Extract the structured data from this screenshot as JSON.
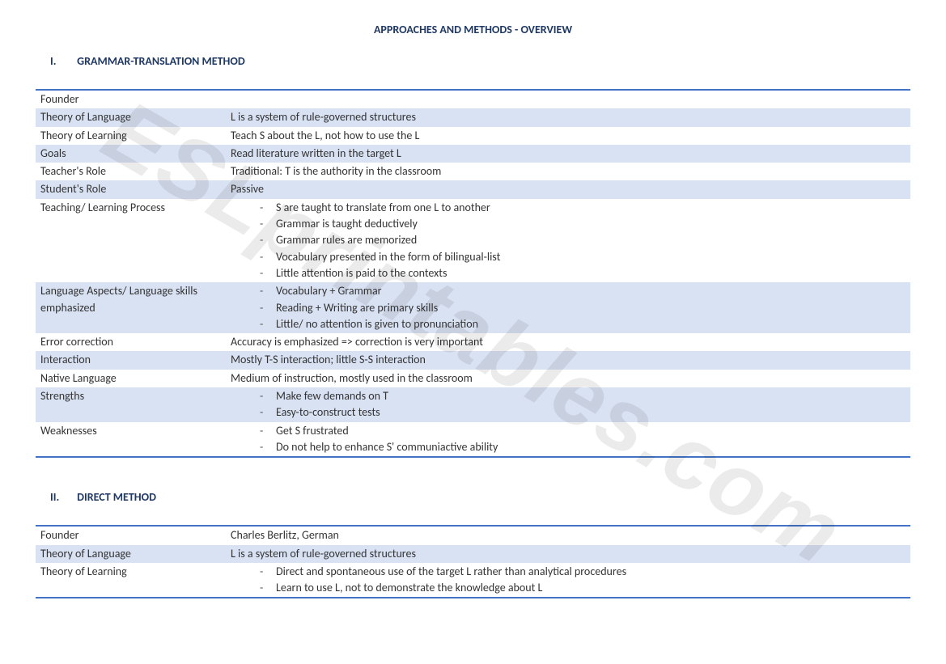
{
  "title": "APPROACHES AND METHODS - OVERVIEW",
  "watermark": "ESLprintables.com",
  "section1": {
    "roman": "I.",
    "heading": "GRAMMAR-TRANSLATION METHOD",
    "rows": [
      {
        "label": "Founder",
        "value": "",
        "stripe": false,
        "type": "text"
      },
      {
        "label": "Theory of Language",
        "value": "L  is a system of rule-governed structures",
        "stripe": true,
        "type": "text"
      },
      {
        "label": "Theory of Learning",
        "value": "Teach S about the L, not how to use the L",
        "stripe": false,
        "type": "text"
      },
      {
        "label": "Goals",
        "value": "Read literature written in the target L",
        "stripe": true,
        "type": "text"
      },
      {
        "label": "Teacher's Role",
        "value": "Traditional: T is the authority in the classroom",
        "stripe": false,
        "type": "text"
      },
      {
        "label": "Student's Role",
        "value": "Passive",
        "stripe": true,
        "type": "text"
      },
      {
        "label": "Teaching/ Learning Process",
        "value": [
          "S are taught to translate from one L to another",
          "Grammar is taught deductively",
          "Grammar rules are memorized",
          "Vocabulary presented in the form of bilingual-list",
          "Little attention is paid to the contexts"
        ],
        "stripe": false,
        "type": "list"
      },
      {
        "label": "Language Aspects/ Language skills emphasized",
        "value": [
          "Vocabulary + Grammar",
          "Reading + Writing are primary skills",
          "Little/ no attention is given to pronunciation"
        ],
        "stripe": true,
        "type": "list"
      },
      {
        "label": "Error correction",
        "value": "Accuracy is emphasized => correction is very important",
        "stripe": false,
        "type": "text"
      },
      {
        "label": "Interaction",
        "value": "Mostly T-S interaction; little S-S interaction",
        "stripe": true,
        "type": "text"
      },
      {
        "label": "Native Language",
        "value": "Medium of instruction, mostly used in the classroom",
        "stripe": false,
        "type": "text"
      },
      {
        "label": "Strengths",
        "value": [
          "Make few demands on T",
          "Easy-to-construct  tests"
        ],
        "stripe": true,
        "type": "list"
      },
      {
        "label": "Weaknesses",
        "value": [
          "Get S frustrated",
          "Do not help to enhance S' communiactive ability"
        ],
        "stripe": false,
        "type": "list"
      }
    ]
  },
  "section2": {
    "roman": "II.",
    "heading": "DIRECT METHOD",
    "rows": [
      {
        "label": "Founder",
        "value": "Charles Berlitz, German",
        "stripe": false,
        "type": "text"
      },
      {
        "label": "Theory of Language",
        "value": "L  is a system of rule-governed structures",
        "stripe": true,
        "type": "text"
      },
      {
        "label": "Theory of Learning",
        "value": [
          "Direct and spontaneous use of the target L rather than analytical procedures",
          "Learn to use L, not to demonstrate the knowledge about L"
        ],
        "stripe": false,
        "type": "list"
      }
    ]
  }
}
